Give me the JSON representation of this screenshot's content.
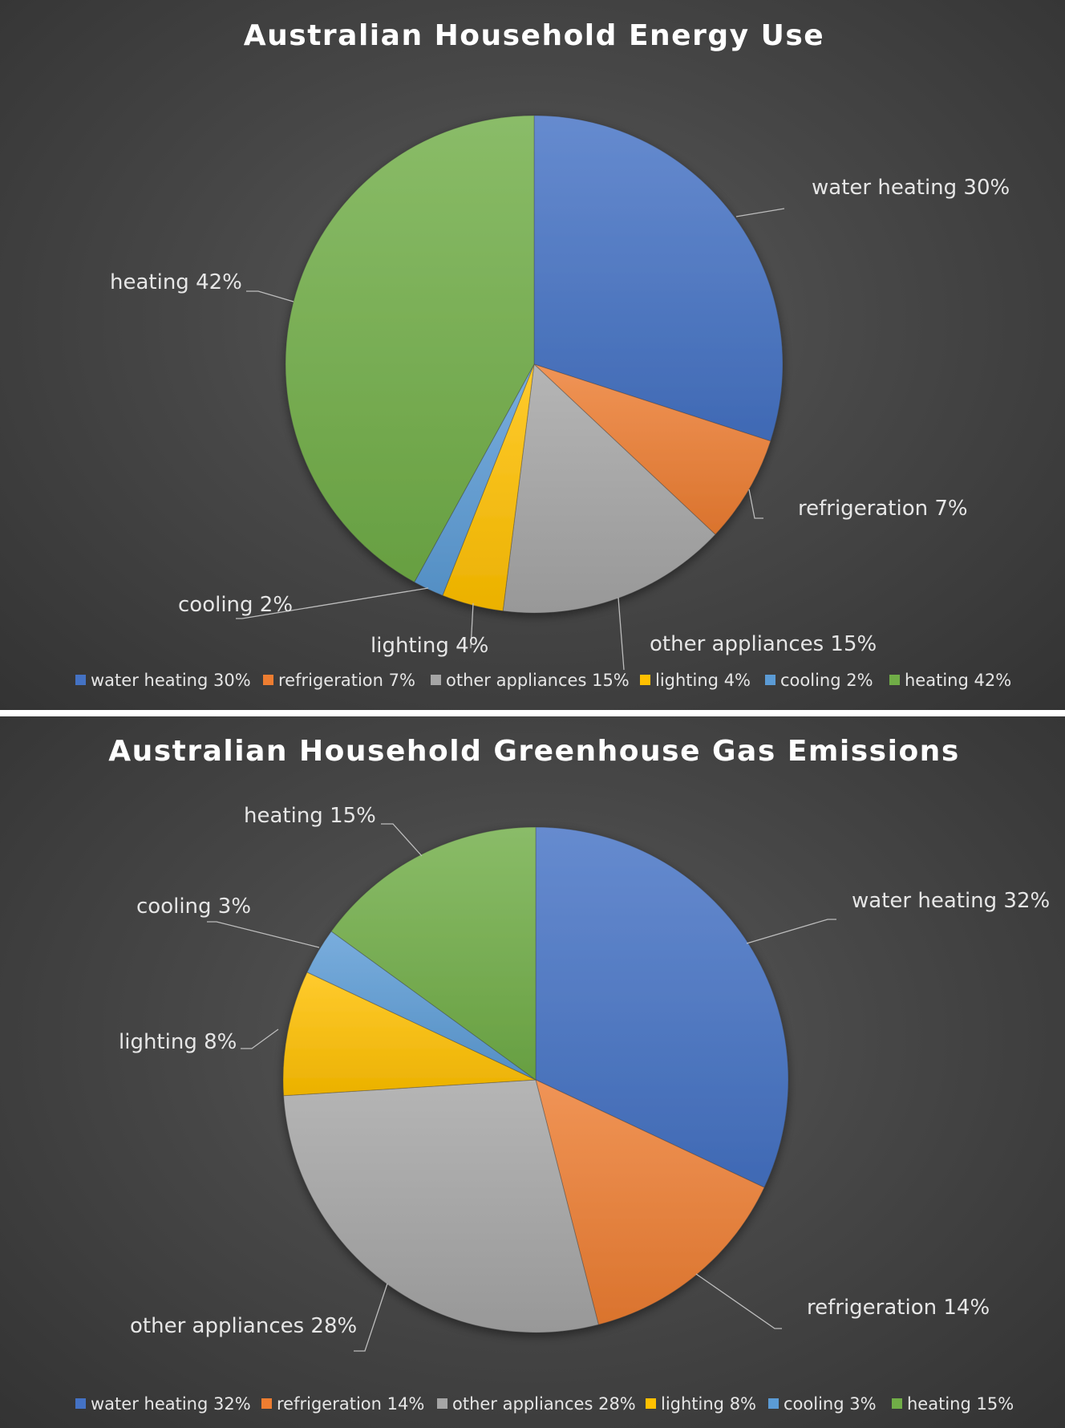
{
  "chart_data": [
    {
      "type": "pie",
      "title": "Australian Household Energy Use",
      "categories": [
        "water heating",
        "refrigeration",
        "other appliances",
        "lighting",
        "cooling",
        "heating"
      ],
      "values": [
        30,
        7,
        15,
        4,
        2,
        42
      ],
      "labels": [
        "water heating 30%",
        "refrigeration 7%",
        "other appliances 15%",
        "lighting 4%",
        "cooling 2%",
        "heating 42%"
      ],
      "colors": [
        "#4472C4",
        "#ED7D31",
        "#A5A5A5",
        "#FFC000",
        "#5B9BD5",
        "#70AD47"
      ],
      "legend": "bottom"
    },
    {
      "type": "pie",
      "title": "Australian Household Greenhouse Gas Emissions",
      "categories": [
        "water heating",
        "refrigeration",
        "other appliances",
        "lighting",
        "cooling",
        "heating"
      ],
      "values": [
        32,
        14,
        28,
        8,
        3,
        15
      ],
      "labels": [
        "water heating 32%",
        "refrigeration 14%",
        "other appliances 28%",
        "lighting 8%",
        "cooling 3%",
        "heating 15%"
      ],
      "colors": [
        "#4472C4",
        "#ED7D31",
        "#A5A5A5",
        "#FFC000",
        "#5B9BD5",
        "#70AD47"
      ],
      "legend": "bottom"
    }
  ]
}
